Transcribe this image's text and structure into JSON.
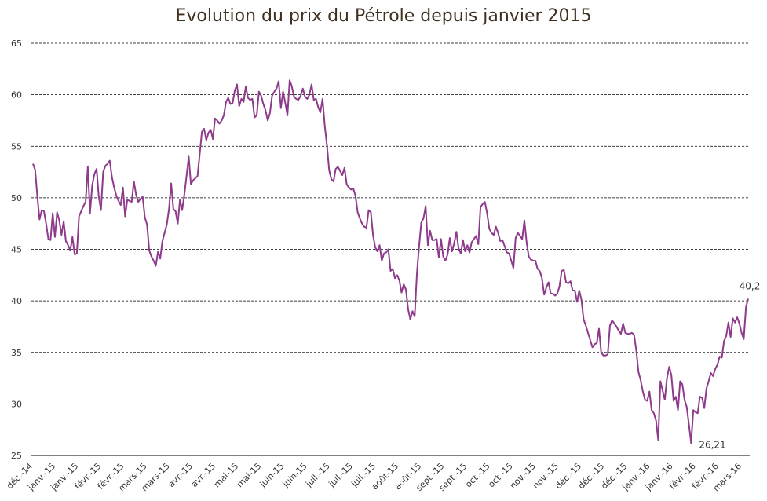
{
  "chart_data": {
    "type": "line",
    "title": "Evolution du prix du Pétrole depuis janvier 2015",
    "xlabel": "",
    "ylabel": "",
    "ylim": [
      25,
      65
    ],
    "yticks": [
      25,
      30,
      35,
      40,
      45,
      50,
      55,
      60,
      65
    ],
    "grid": true,
    "xtick_labels": [
      "déc.-14",
      "janv.-15",
      "janv.-15",
      "févr.-15",
      "févr.-15",
      "mars-15",
      "mars-15",
      "avr.-15",
      "avr.-15",
      "mai-15",
      "mai-15",
      "juin-15",
      "juin-15",
      "juil.-15",
      "juil.-15",
      "juil.-15",
      "août-15",
      "août-15",
      "sept.-15",
      "sept.-15",
      "oct.-15",
      "oct.-15",
      "nov.-15",
      "nov.-15",
      "déc.-15",
      "déc.-15",
      "déc.-15",
      "janv.-16",
      "janv.-16",
      "févr.-16",
      "févr.-16",
      "mars-16"
    ],
    "line_color": "#8e3b8c",
    "series": [
      {
        "values": [
          53.3,
          52.7,
          50.1,
          47.9,
          48.8,
          48.7,
          47.5,
          46.0,
          45.9,
          48.5,
          46.2,
          48.6,
          47.8,
          46.4,
          47.7,
          45.8,
          45.4,
          44.9,
          46.2,
          44.5,
          44.6,
          48.2,
          48.7,
          49.2,
          49.6,
          53.0,
          48.5,
          51.2,
          52.3,
          52.8,
          50.1,
          48.8,
          52.5,
          53.1,
          53.3,
          53.6,
          52.0,
          51.0,
          50.2,
          49.7,
          49.3,
          51.0,
          48.2,
          49.8,
          49.7,
          49.6,
          51.6,
          50.3,
          49.6,
          49.9,
          50.1,
          48.1,
          47.4,
          44.9,
          44.3,
          43.9,
          43.4,
          44.8,
          44.1,
          45.8,
          46.6,
          47.4,
          48.9,
          51.4,
          48.9,
          48.7,
          47.5,
          49.8,
          48.8,
          50.3,
          52.1,
          54.0,
          51.3,
          51.7,
          51.9,
          52.1,
          54.2,
          56.4,
          56.7,
          55.6,
          56.3,
          56.6,
          55.7,
          57.7,
          57.5,
          57.2,
          57.5,
          58.0,
          59.3,
          59.7,
          59.1,
          59.2,
          60.4,
          61.0,
          58.9,
          59.6,
          59.3,
          60.8,
          59.7,
          59.5,
          59.6,
          57.8,
          58.0,
          60.3,
          59.9,
          59.1,
          58.5,
          57.5,
          58.2,
          59.9,
          60.3,
          60.6,
          61.3,
          58.7,
          60.3,
          59.2,
          58.0,
          61.4,
          60.8,
          59.8,
          59.6,
          59.5,
          59.9,
          60.6,
          59.8,
          59.6,
          60.0,
          61.0,
          59.5,
          59.6,
          58.8,
          58.3,
          59.6,
          57.0,
          55.1,
          52.7,
          51.8,
          51.6,
          52.8,
          53.0,
          52.6,
          52.2,
          52.9,
          51.3,
          51.0,
          50.8,
          50.9,
          50.2,
          48.6,
          48.0,
          47.5,
          47.2,
          47.1,
          48.8,
          48.6,
          46.4,
          45.2,
          44.8,
          45.4,
          43.9,
          44.6,
          44.7,
          45.0,
          42.9,
          43.1,
          42.2,
          42.5,
          42.0,
          40.8,
          41.6,
          41.1,
          39.2,
          38.2,
          39.0,
          38.5,
          42.6,
          45.3,
          47.6,
          48.0,
          49.2,
          45.4,
          46.8,
          45.9,
          45.9,
          46.0,
          44.2,
          46.0,
          44.3,
          43.9,
          44.5,
          46.1,
          44.8,
          45.6,
          46.7,
          45.1,
          44.6,
          45.9,
          44.8,
          45.4,
          44.7,
          45.7,
          46.0,
          46.3,
          45.5,
          49.1,
          49.4,
          49.6,
          48.5,
          47.0,
          46.6,
          46.4,
          47.2,
          46.6,
          45.8,
          45.9,
          45.3,
          44.7,
          44.6,
          43.9,
          43.2,
          46.1,
          46.6,
          46.3,
          46.0,
          47.8,
          45.7,
          44.3,
          44.0,
          43.9,
          43.9,
          43.1,
          42.9,
          42.2,
          40.6,
          41.3,
          41.8,
          40.7,
          40.7,
          40.5,
          40.7,
          41.4,
          42.9,
          43.0,
          41.8,
          41.7,
          41.9,
          41.0,
          41.0,
          39.9,
          41.0,
          40.1,
          38.2,
          37.6,
          36.9,
          36.2,
          35.5,
          35.8,
          35.9,
          37.3,
          35.0,
          34.7,
          34.7,
          34.8,
          37.6,
          38.1,
          37.8,
          37.5,
          37.1,
          36.8,
          37.8,
          36.9,
          36.8,
          36.8,
          36.9,
          36.7,
          35.2,
          33.1,
          32.3,
          31.2,
          30.4,
          30.3,
          31.2,
          29.4,
          29.1,
          28.4,
          26.5,
          32.2,
          31.3,
          30.4,
          32.5,
          33.6,
          32.8,
          30.3,
          30.7,
          29.4,
          32.2,
          31.9,
          30.4,
          29.7,
          28.0,
          26.2,
          29.4,
          29.2,
          29.1,
          30.7,
          30.6,
          29.6,
          31.5,
          32.2,
          33.0,
          32.7,
          33.4,
          33.8,
          34.6,
          34.5,
          36.1,
          36.6,
          37.9,
          36.5,
          38.3,
          37.9,
          38.4,
          37.8,
          36.9,
          36.3,
          39.4,
          40.2
        ]
      }
    ],
    "annotations": [
      {
        "text": "26,21",
        "point": "min"
      },
      {
        "text": "40,2",
        "point": "last"
      }
    ]
  }
}
